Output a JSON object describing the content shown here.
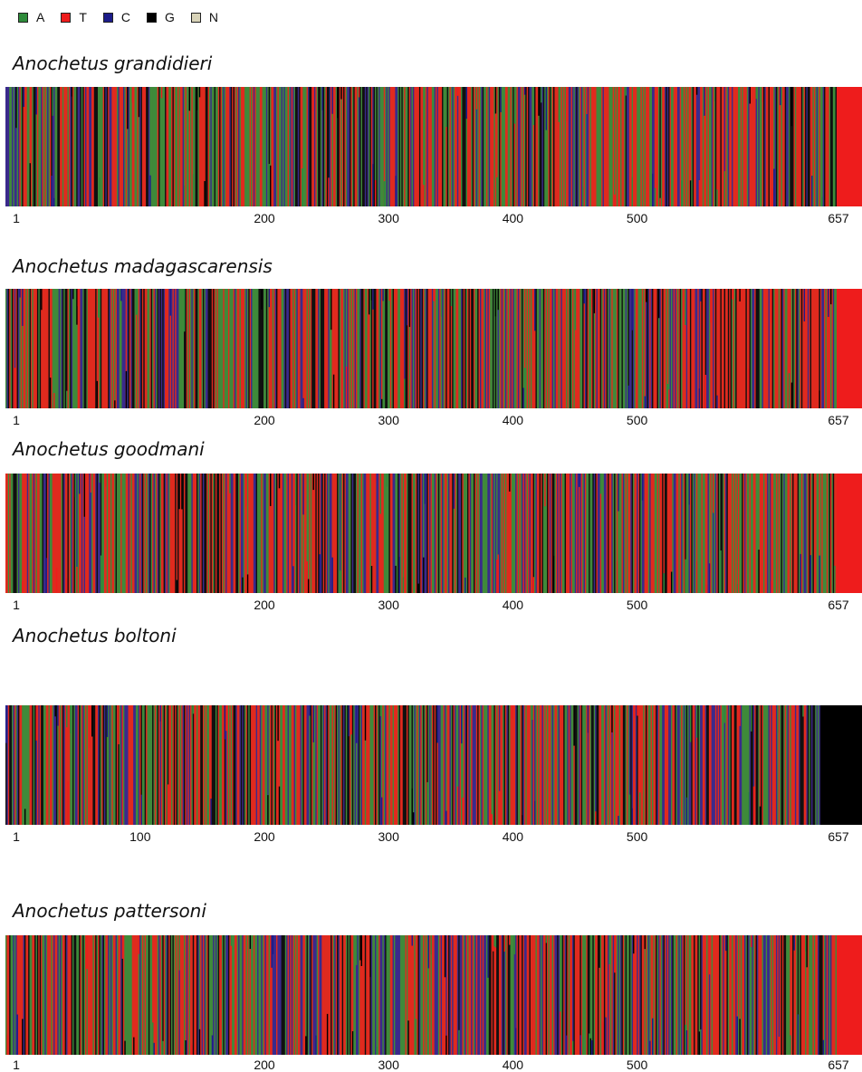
{
  "legend": [
    {
      "label": "A",
      "color": "#2e8b3a"
    },
    {
      "label": "T",
      "color": "#ee1c1c"
    },
    {
      "label": "C",
      "color": "#1c1c8a"
    },
    {
      "label": "G",
      "color": "#000000"
    },
    {
      "label": "N",
      "color": "#d8d3b8"
    }
  ],
  "chart_data": [
    {
      "type": "heatmap",
      "title": "Anochetus grandidieri",
      "xlim": [
        1,
        657
      ],
      "ticks": [
        "1",
        "200",
        "300",
        "400",
        "500",
        "657"
      ],
      "tail_color": "#ee1c1c",
      "composition": {
        "A": 0.3,
        "T": 0.38,
        "C": 0.16,
        "G": 0.16
      }
    },
    {
      "type": "heatmap",
      "title": "Anochetus madagascarensis",
      "xlim": [
        1,
        657
      ],
      "ticks": [
        "1",
        "200",
        "300",
        "400",
        "500",
        "657"
      ],
      "tail_color": "#ee1c1c",
      "composition": {
        "A": 0.3,
        "T": 0.38,
        "C": 0.16,
        "G": 0.16
      }
    },
    {
      "type": "heatmap",
      "title": "Anochetus goodmani",
      "xlim": [
        1,
        657
      ],
      "ticks": [
        "1",
        "200",
        "300",
        "400",
        "500",
        "657"
      ],
      "tail_color": "#ee1c1c",
      "composition": {
        "A": 0.3,
        "T": 0.38,
        "C": 0.16,
        "G": 0.16
      }
    },
    {
      "type": "heatmap",
      "title": "Anochetus boltoni",
      "xlim": [
        1,
        657
      ],
      "ticks": [
        "1",
        "100",
        "200",
        "300",
        "400",
        "500",
        "657"
      ],
      "tail_color": "#000000",
      "composition": {
        "A": 0.3,
        "T": 0.38,
        "C": 0.16,
        "G": 0.16
      }
    },
    {
      "type": "heatmap",
      "title": "Anochetus pattersoni",
      "xlim": [
        1,
        657
      ],
      "ticks": [
        "1",
        "200",
        "300",
        "400",
        "500",
        "657"
      ],
      "tail_color": "#ee1c1c",
      "composition": {
        "A": 0.3,
        "T": 0.38,
        "C": 0.16,
        "G": 0.16
      }
    }
  ]
}
